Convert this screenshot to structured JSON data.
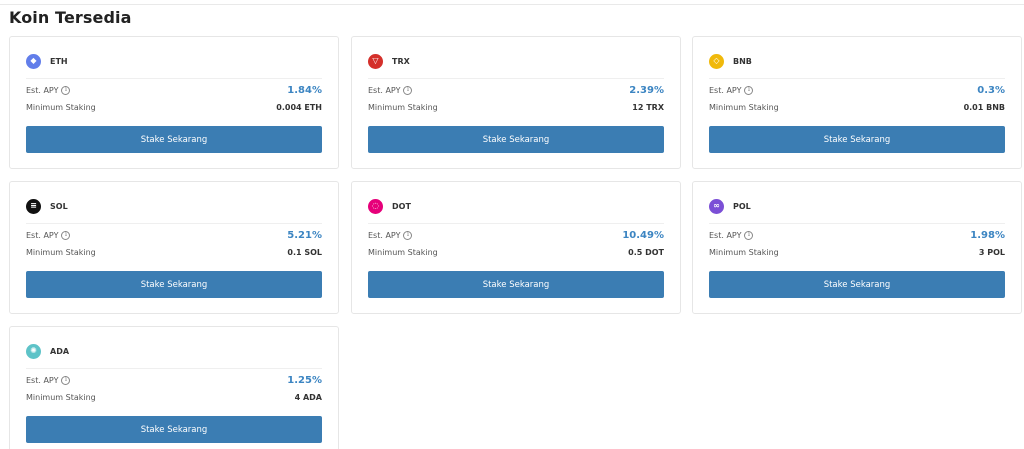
{
  "page": {
    "title": "Koin Tersedia"
  },
  "labels": {
    "apy": "Est. APY",
    "min": "Minimum Staking",
    "button": "Stake Sekarang",
    "info": "i"
  },
  "coins": [
    {
      "symbol": "ETH",
      "apy": "1.84%",
      "min": "0.004 ETH",
      "icon": "ethereum-icon",
      "color": "#627eea",
      "glyph": "◆"
    },
    {
      "symbol": "TRX",
      "apy": "2.39%",
      "min": "12 TRX",
      "icon": "tron-icon",
      "color": "#d4302b",
      "glyph": "▽"
    },
    {
      "symbol": "BNB",
      "apy": "0.3%",
      "min": "0.01 BNB",
      "icon": "bnb-icon",
      "color": "#f0b90b",
      "glyph": "◇"
    },
    {
      "symbol": "SOL",
      "apy": "5.21%",
      "min": "0.1 SOL",
      "icon": "solana-icon",
      "color": "#111111",
      "glyph": "≡"
    },
    {
      "symbol": "DOT",
      "apy": "10.49%",
      "min": "0.5 DOT",
      "icon": "polkadot-icon",
      "color": "#e6007a",
      "glyph": "◌"
    },
    {
      "symbol": "POL",
      "apy": "1.98%",
      "min": "3 POL",
      "icon": "polygon-icon",
      "color": "#7b4fd6",
      "glyph": "∞"
    },
    {
      "symbol": "ADA",
      "apy": "1.25%",
      "min": "4 ADA",
      "icon": "cardano-icon",
      "color": "#5ec3c8",
      "glyph": "✺"
    }
  ]
}
